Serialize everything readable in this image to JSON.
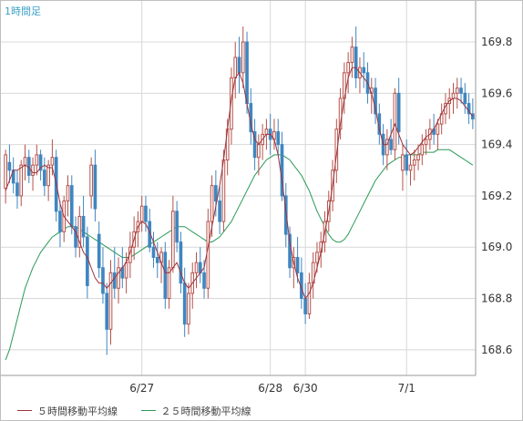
{
  "header": {
    "timeframe_label": "1時間足"
  },
  "legend": {
    "ma5_label": "５時間移動平均線",
    "ma25_label": "２５時間移動平均線"
  },
  "colors": {
    "up": "#b5514a",
    "down": "#3f86c0",
    "ma5": "#a0323a",
    "ma25": "#2a9a55",
    "grid": "#d8d8d8",
    "axis": "#9a9a9a"
  },
  "chart_data": {
    "type": "candlestick",
    "title": "",
    "xlabel": "",
    "ylabel": "",
    "ylim": [
      168.5,
      169.96
    ],
    "y_ticks": [
      168.6,
      168.8,
      169.0,
      169.2,
      169.4,
      169.6,
      169.8
    ],
    "x_tick_labels": [
      {
        "label": "6/27",
        "index": 35
      },
      {
        "label": "6/28",
        "index": 68
      },
      {
        "label": "6/30",
        "index": 77
      },
      {
        "label": "7/1",
        "index": 103
      }
    ],
    "grid": true,
    "legend_position": "bottom",
    "candle_count": 121,
    "candles": [
      [
        169.23,
        169.38,
        169.17,
        169.36
      ],
      [
        169.33,
        169.4,
        169.25,
        169.3
      ],
      [
        169.3,
        169.35,
        169.21,
        169.25
      ],
      [
        169.25,
        169.3,
        169.15,
        169.2
      ],
      [
        169.2,
        169.34,
        169.16,
        169.32
      ],
      [
        169.32,
        169.4,
        169.26,
        169.35
      ],
      [
        169.35,
        169.38,
        169.25,
        169.28
      ],
      [
        169.28,
        169.35,
        169.22,
        169.32
      ],
      [
        169.32,
        169.4,
        169.28,
        169.36
      ],
      [
        169.36,
        169.38,
        169.26,
        169.3
      ],
      [
        169.3,
        169.35,
        169.2,
        169.24
      ],
      [
        169.24,
        169.34,
        169.18,
        169.32
      ],
      [
        169.32,
        169.42,
        169.28,
        169.35
      ],
      [
        169.35,
        169.38,
        169.1,
        169.14
      ],
      [
        169.14,
        169.18,
        169.0,
        169.06
      ],
      [
        169.06,
        169.2,
        169.02,
        169.18
      ],
      [
        169.18,
        169.28,
        169.12,
        169.24
      ],
      [
        169.24,
        169.28,
        169.05,
        169.08
      ],
      [
        169.08,
        169.12,
        168.96,
        169.0
      ],
      [
        169.0,
        169.16,
        168.96,
        169.12
      ],
      [
        169.12,
        169.2,
        169.0,
        169.04
      ],
      [
        169.04,
        169.08,
        168.8,
        168.85
      ],
      [
        169.2,
        169.35,
        169.15,
        169.32
      ],
      [
        169.32,
        169.38,
        169.1,
        169.15
      ],
      [
        169.05,
        169.1,
        168.88,
        168.92
      ],
      [
        168.92,
        169.0,
        168.78,
        168.82
      ],
      [
        168.82,
        168.86,
        168.58,
        168.68
      ],
      [
        168.68,
        168.95,
        168.62,
        168.9
      ],
      [
        168.9,
        169.0,
        168.8,
        168.84
      ],
      [
        168.84,
        168.96,
        168.78,
        168.92
      ],
      [
        168.92,
        169.0,
        168.84,
        168.88
      ],
      [
        168.88,
        168.98,
        168.82,
        168.94
      ],
      [
        168.94,
        169.06,
        168.88,
        169.0
      ],
      [
        169.0,
        169.12,
        168.95,
        169.06
      ],
      [
        169.06,
        169.14,
        169.0,
        169.1
      ],
      [
        169.1,
        169.2,
        169.06,
        169.16
      ],
      [
        169.16,
        169.2,
        169.06,
        169.1
      ],
      [
        169.1,
        169.15,
        168.98,
        169.0
      ],
      [
        169.0,
        169.06,
        168.92,
        168.96
      ],
      [
        168.96,
        169.02,
        168.88,
        168.94
      ],
      [
        168.94,
        169.0,
        168.86,
        168.98
      ],
      [
        168.98,
        169.02,
        168.76,
        168.8
      ],
      [
        168.8,
        168.95,
        168.76,
        168.92
      ],
      [
        168.92,
        169.2,
        168.9,
        169.14
      ],
      [
        169.14,
        169.18,
        168.98,
        169.02
      ],
      [
        169.02,
        169.06,
        168.82,
        168.86
      ],
      [
        168.86,
        168.92,
        168.65,
        168.7
      ],
      [
        168.7,
        168.86,
        168.66,
        168.82
      ],
      [
        168.82,
        168.94,
        168.76,
        168.9
      ],
      [
        168.9,
        168.98,
        168.84,
        168.94
      ],
      [
        168.94,
        169.0,
        168.86,
        168.9
      ],
      [
        168.9,
        168.95,
        168.8,
        168.84
      ],
      [
        168.84,
        169.15,
        168.8,
        169.1
      ],
      [
        169.1,
        169.28,
        169.04,
        169.24
      ],
      [
        169.24,
        169.3,
        169.12,
        169.18
      ],
      [
        169.18,
        169.24,
        169.05,
        169.1
      ],
      [
        169.1,
        169.38,
        169.06,
        169.34
      ],
      [
        169.34,
        169.5,
        169.28,
        169.46
      ],
      [
        169.46,
        169.7,
        169.4,
        169.66
      ],
      [
        169.66,
        169.8,
        169.58,
        169.74
      ],
      [
        169.74,
        169.82,
        169.6,
        169.68
      ],
      [
        169.68,
        169.86,
        169.62,
        169.8
      ],
      [
        169.8,
        169.84,
        169.52,
        169.56
      ],
      [
        169.56,
        169.62,
        169.4,
        169.45
      ],
      [
        169.45,
        169.5,
        169.3,
        169.35
      ],
      [
        169.35,
        169.44,
        169.28,
        169.4
      ],
      [
        169.4,
        169.48,
        169.34,
        169.44
      ],
      [
        169.44,
        169.5,
        169.38,
        169.46
      ],
      [
        169.46,
        169.52,
        169.36,
        169.42
      ],
      [
        169.42,
        169.5,
        169.38,
        169.45
      ],
      [
        169.45,
        169.5,
        169.36,
        169.4
      ],
      [
        169.4,
        169.45,
        169.18,
        169.2
      ],
      [
        169.2,
        169.25,
        169.0,
        169.05
      ],
      [
        169.05,
        169.08,
        168.88,
        168.92
      ],
      [
        168.92,
        169.0,
        168.84,
        168.96
      ],
      [
        168.96,
        169.04,
        168.86,
        168.9
      ],
      [
        168.9,
        168.96,
        168.76,
        168.8
      ],
      [
        168.8,
        168.86,
        168.7,
        168.74
      ],
      [
        168.74,
        168.9,
        168.72,
        168.86
      ],
      [
        168.86,
        168.98,
        168.8,
        168.94
      ],
      [
        168.94,
        169.02,
        168.9,
        168.98
      ],
      [
        168.98,
        169.06,
        168.92,
        169.02
      ],
      [
        169.02,
        169.14,
        168.98,
        169.1
      ],
      [
        169.1,
        169.22,
        169.06,
        169.18
      ],
      [
        169.18,
        169.34,
        169.14,
        169.3
      ],
      [
        169.3,
        169.5,
        169.25,
        169.46
      ],
      [
        169.46,
        169.62,
        169.42,
        169.58
      ],
      [
        169.58,
        169.72,
        169.52,
        169.68
      ],
      [
        169.68,
        169.76,
        169.6,
        169.72
      ],
      [
        169.72,
        169.82,
        169.66,
        169.78
      ],
      [
        169.78,
        169.86,
        169.62,
        169.66
      ],
      [
        169.66,
        169.74,
        169.6,
        169.7
      ],
      [
        169.7,
        169.76,
        169.62,
        169.68
      ],
      [
        169.68,
        169.72,
        169.56,
        169.6
      ],
      [
        169.6,
        169.66,
        169.52,
        169.62
      ],
      [
        169.62,
        169.66,
        169.48,
        169.52
      ],
      [
        169.52,
        169.56,
        169.4,
        169.44
      ],
      [
        169.44,
        169.48,
        169.32,
        169.36
      ],
      [
        169.36,
        169.46,
        169.3,
        169.42
      ],
      [
        169.42,
        169.5,
        169.36,
        169.38
      ],
      [
        169.38,
        169.62,
        169.34,
        169.6
      ],
      [
        169.6,
        169.66,
        169.4,
        169.45
      ],
      [
        169.3,
        169.4,
        169.22,
        169.36
      ],
      [
        169.36,
        169.42,
        169.28,
        169.3
      ],
      [
        169.3,
        169.36,
        169.24,
        169.32
      ],
      [
        169.32,
        169.38,
        169.26,
        169.34
      ],
      [
        169.34,
        169.4,
        169.3,
        169.36
      ],
      [
        169.36,
        169.44,
        169.32,
        169.4
      ],
      [
        169.4,
        169.46,
        169.36,
        169.42
      ],
      [
        169.42,
        169.5,
        169.38,
        169.46
      ],
      [
        169.46,
        169.52,
        169.4,
        169.44
      ],
      [
        169.44,
        169.5,
        169.38,
        169.48
      ],
      [
        169.48,
        169.56,
        169.44,
        169.52
      ],
      [
        169.52,
        169.6,
        169.48,
        169.56
      ],
      [
        169.56,
        169.62,
        169.5,
        169.58
      ],
      [
        169.58,
        169.64,
        169.52,
        169.6
      ],
      [
        169.6,
        169.66,
        169.54,
        169.62
      ],
      [
        169.62,
        169.66,
        169.56,
        169.6
      ],
      [
        169.6,
        169.64,
        169.52,
        169.56
      ],
      [
        169.56,
        169.6,
        169.48,
        169.52
      ],
      [
        169.52,
        169.58,
        169.46,
        169.5
      ]
    ],
    "series": [
      {
        "name": "５時間移動平均線",
        "values": [
          169.22,
          169.26,
          169.3,
          169.3,
          169.31,
          169.32,
          169.31,
          169.29,
          169.29,
          169.31,
          169.32,
          169.31,
          169.31,
          169.25,
          169.17,
          169.12,
          169.1,
          169.08,
          169.06,
          169.02,
          168.98,
          168.96,
          168.92,
          168.88,
          168.86,
          168.86,
          168.84,
          168.86,
          168.88,
          168.9,
          168.92,
          168.94,
          168.98,
          169.03,
          169.08,
          169.1,
          169.09,
          169.06,
          169.02,
          168.98,
          168.94,
          168.9,
          168.9,
          168.92,
          168.94,
          168.9,
          168.86,
          168.84,
          168.86,
          168.88,
          168.9,
          168.92,
          169.0,
          169.08,
          169.16,
          169.24,
          169.34,
          169.46,
          169.58,
          169.66,
          169.68,
          169.64,
          169.56,
          169.48,
          169.42,
          169.4,
          169.42,
          169.44,
          169.44,
          169.42,
          169.36,
          169.26,
          169.14,
          169.02,
          168.94,
          168.88,
          168.84,
          168.8,
          168.82,
          168.86,
          168.92,
          168.98,
          169.06,
          169.14,
          169.24,
          169.36,
          169.48,
          169.58,
          169.66,
          169.7,
          169.7,
          169.68,
          169.66,
          169.64,
          169.6,
          169.54,
          169.46,
          169.4,
          169.4,
          169.44,
          169.48,
          169.44,
          169.4,
          169.38,
          169.36,
          169.37,
          169.39,
          169.41,
          169.43,
          169.44,
          169.46,
          169.49,
          169.52,
          169.55,
          169.57,
          169.58,
          169.58,
          169.57,
          169.55,
          169.53,
          169.51
        ]
      },
      {
        "name": "２５時間移動平均線",
        "values": [
          168.56,
          168.6,
          168.66,
          168.72,
          168.78,
          168.84,
          168.88,
          168.92,
          168.95,
          168.98,
          169.0,
          169.02,
          169.04,
          169.05,
          169.06,
          169.07,
          169.08,
          169.08,
          169.08,
          169.07,
          169.06,
          169.05,
          169.04,
          169.03,
          169.02,
          169.01,
          169.0,
          168.99,
          168.98,
          168.97,
          168.96,
          168.96,
          168.96,
          168.97,
          168.98,
          168.99,
          169.0,
          169.01,
          169.02,
          169.03,
          169.04,
          169.05,
          169.06,
          169.07,
          169.08,
          169.08,
          169.08,
          169.07,
          169.06,
          169.05,
          169.04,
          169.03,
          169.02,
          169.02,
          169.03,
          169.04,
          169.06,
          169.08,
          169.1,
          169.13,
          169.16,
          169.19,
          169.22,
          169.25,
          169.28,
          169.3,
          169.32,
          169.34,
          169.35,
          169.36,
          169.36,
          169.36,
          169.35,
          169.34,
          169.32,
          169.3,
          169.28,
          169.25,
          169.22,
          169.18,
          169.14,
          169.11,
          169.08,
          169.05,
          169.03,
          169.02,
          169.02,
          169.03,
          169.05,
          169.08,
          169.11,
          169.14,
          169.17,
          169.2,
          169.23,
          169.26,
          169.28,
          169.3,
          169.32,
          169.33,
          169.34,
          169.35,
          169.35,
          169.36,
          169.36,
          169.36,
          169.36,
          169.37,
          169.37,
          169.37,
          169.37,
          169.38,
          169.38,
          169.38,
          169.38,
          169.37,
          169.36,
          169.35,
          169.34,
          169.33,
          169.32
        ]
      }
    ]
  }
}
